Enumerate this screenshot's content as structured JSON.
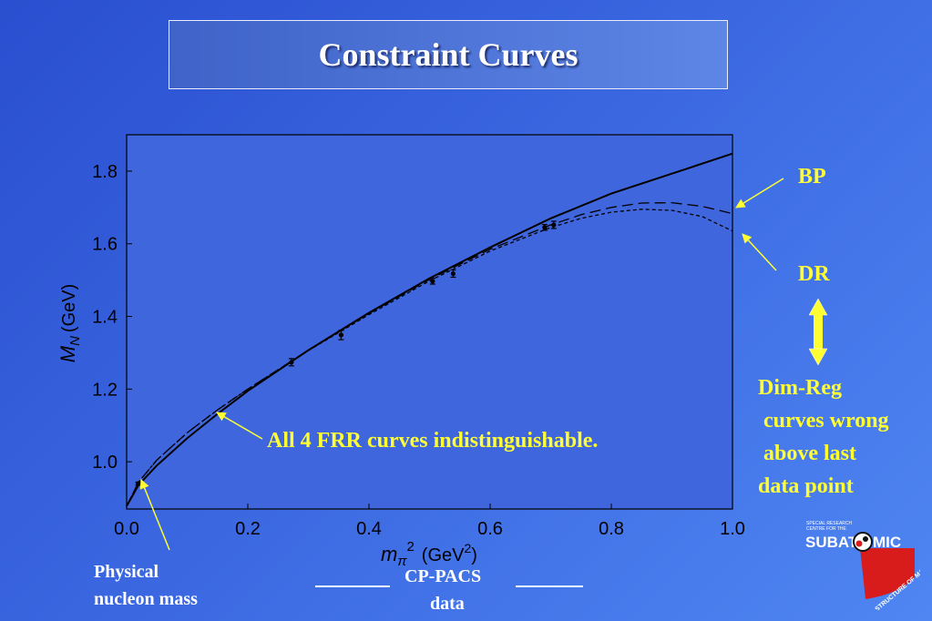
{
  "title": "Constraint Curves",
  "colors": {
    "annotation": "#ffff33",
    "plot_bg": "#3f66dc"
  },
  "annotations": {
    "bp": "BP",
    "dr": "DR",
    "frr": "All 4 FRR curves indistinguishable.",
    "dimreg": [
      "Dim-Reg",
      " curves wrong",
      " above last",
      "data point"
    ],
    "physical": [
      "Physical",
      "nucleon mass"
    ],
    "cppacs": [
      "CP-PACS",
      "data"
    ]
  },
  "logo": {
    "small_text": [
      "SPECIAL RESEARCH",
      "CENTRE FOR THE"
    ],
    "main_text": "SUBAT",
    "main_text_end": "MIC",
    "curved_text": "STRUCTURE OF MATTER"
  },
  "chart_data": {
    "type": "line",
    "xlabel_main": "m",
    "xlabel_sub": "π",
    "xlabel_sup": "2",
    "xlabel_unit": "(GeV",
    "xlabel_unit_sup": "2",
    "xlabel_close": ")",
    "ylabel_main": "M",
    "ylabel_sub": "N",
    "ylabel_unit": "(GeV)",
    "xlim": [
      0.0,
      1.0
    ],
    "ylim": [
      0.87,
      1.9
    ],
    "x_ticks": [
      0.0,
      0.2,
      0.4,
      0.6,
      0.8,
      1.0
    ],
    "x_tick_labels": [
      "0.0",
      "0.2",
      "0.4",
      "0.6",
      "0.8",
      "1.0"
    ],
    "y_ticks": [
      1.0,
      1.2,
      1.4,
      1.6,
      1.8
    ],
    "y_tick_labels": [
      "1.0",
      "1.2",
      "1.4",
      "1.6",
      "1.8"
    ],
    "data_points": [
      {
        "x": 0.019,
        "y": 0.94,
        "err": 0.004
      },
      {
        "x": 0.272,
        "y": 1.274,
        "err": 0.01
      },
      {
        "x": 0.354,
        "y": 1.349,
        "err": 0.013
      },
      {
        "x": 0.505,
        "y": 1.497,
        "err": 0.008
      },
      {
        "x": 0.539,
        "y": 1.518,
        "err": 0.01
      },
      {
        "x": 0.69,
        "y": 1.645,
        "err": 0.008
      },
      {
        "x": 0.705,
        "y": 1.652,
        "err": 0.01
      }
    ],
    "series": [
      {
        "style": "solid",
        "x": [
          0.0,
          0.02,
          0.05,
          0.1,
          0.15,
          0.2,
          0.3,
          0.4,
          0.5,
          0.6,
          0.7,
          0.8,
          0.9,
          1.0
        ],
        "y": [
          0.878,
          0.937,
          0.99,
          1.065,
          1.132,
          1.195,
          1.307,
          1.41,
          1.505,
          1.59,
          1.67,
          1.738,
          1.793,
          1.848
        ]
      },
      {
        "style": "long-dash",
        "x": [
          0.0,
          0.02,
          0.05,
          0.1,
          0.15,
          0.2,
          0.3,
          0.4,
          0.5,
          0.6,
          0.7,
          0.75,
          0.8,
          0.85,
          0.9,
          0.95,
          1.0
        ],
        "y": [
          0.878,
          0.945,
          1.005,
          1.08,
          1.143,
          1.2,
          1.307,
          1.408,
          1.502,
          1.585,
          1.652,
          1.68,
          1.7,
          1.712,
          1.713,
          1.703,
          1.683
        ]
      },
      {
        "style": "short-dash",
        "x": [
          0.0,
          0.02,
          0.05,
          0.1,
          0.15,
          0.2,
          0.3,
          0.4,
          0.5,
          0.6,
          0.7,
          0.75,
          0.8,
          0.85,
          0.9,
          0.95,
          1.0
        ],
        "y": [
          0.878,
          0.945,
          1.005,
          1.08,
          1.143,
          1.2,
          1.306,
          1.405,
          1.498,
          1.58,
          1.645,
          1.67,
          1.687,
          1.695,
          1.692,
          1.675,
          1.635
        ]
      }
    ]
  }
}
